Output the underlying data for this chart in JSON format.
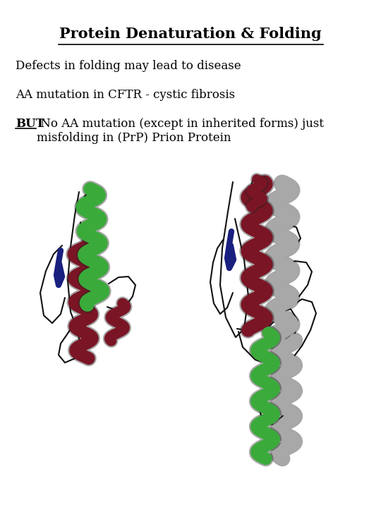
{
  "title": "Protein Denaturation & Folding",
  "line1": "Defects in folding may lead to disease",
  "line2": "AA mutation in CFTR - cystic fibrosis",
  "line3_bold": "BUT",
  "line3_rest": " No AA mutation (except in inherited forms) just\nmisfolding in (PrP) Prion Protein",
  "bg_color": "#ffffff",
  "text_color": "#000000",
  "title_fontsize": 15,
  "body_fontsize": 12,
  "figsize": [
    5.4,
    7.2
  ],
  "dpi": 100,
  "green": "#3aaa3a",
  "darkred": "#7a1525",
  "gray": "#a8a8a8",
  "navy": "#1a2080",
  "black": "#111111"
}
